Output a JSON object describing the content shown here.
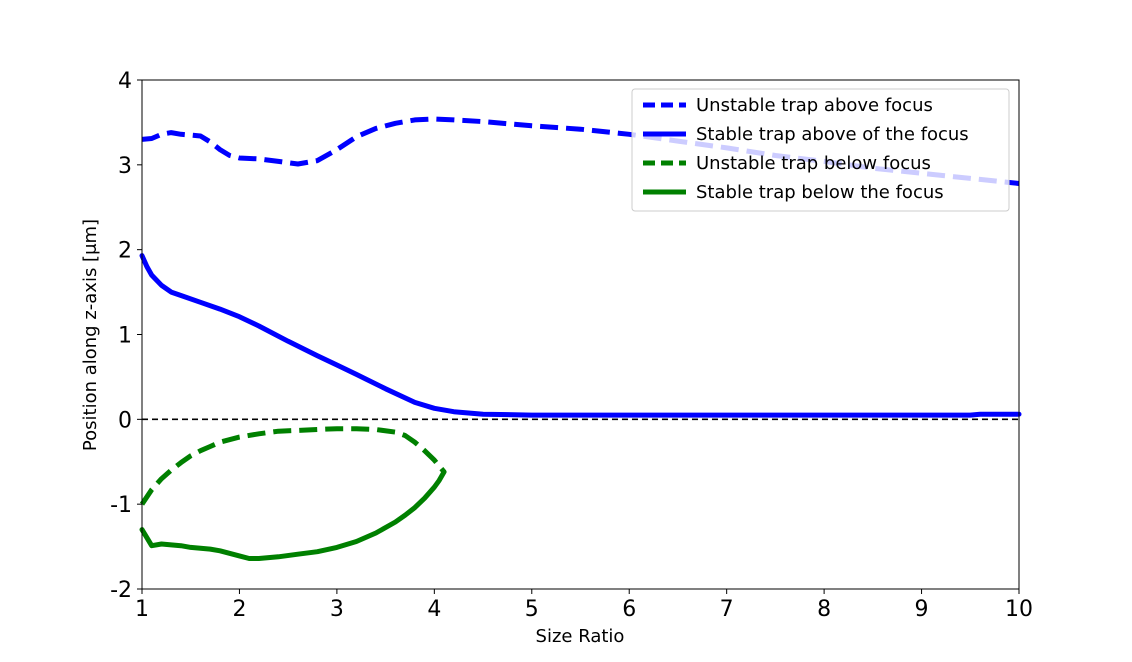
{
  "chart_data": {
    "type": "line",
    "xlabel": "Size Ratio",
    "ylabel": "Position along z-axis [μm]",
    "xlim": [
      1,
      10
    ],
    "ylim": [
      -2,
      4
    ],
    "xticks": [
      1,
      2,
      3,
      4,
      5,
      6,
      7,
      8,
      9,
      10
    ],
    "yticks": [
      -2,
      -1,
      0,
      1,
      2,
      3,
      4
    ],
    "xtick_labels": [
      "1",
      "2",
      "3",
      "4",
      "5",
      "6",
      "7",
      "8",
      "9",
      "10"
    ],
    "ytick_labels": [
      "-2",
      "-1",
      "0",
      "1",
      "2",
      "3",
      "4"
    ],
    "grid": false,
    "legend_position": "top-right",
    "reference_line": {
      "y": 0,
      "style": "dashed",
      "color": "#000000"
    },
    "series": [
      {
        "name": "Unstable trap above focus",
        "color": "#0000ff",
        "style": "dashed",
        "x": [
          1.0,
          1.1,
          1.2,
          1.3,
          1.4,
          1.5,
          1.6,
          1.7,
          1.8,
          1.9,
          2.0,
          2.2,
          2.4,
          2.6,
          2.8,
          3.0,
          3.2,
          3.4,
          3.6,
          3.8,
          4.0,
          4.2,
          4.5,
          5.0,
          5.5,
          6.0,
          6.5,
          7.0,
          7.5,
          8.0,
          8.5,
          9.0,
          9.5,
          10.0
        ],
        "y": [
          3.3,
          3.31,
          3.36,
          3.38,
          3.36,
          3.35,
          3.34,
          3.27,
          3.18,
          3.11,
          3.08,
          3.07,
          3.04,
          3.01,
          3.05,
          3.18,
          3.33,
          3.43,
          3.49,
          3.53,
          3.54,
          3.53,
          3.51,
          3.46,
          3.42,
          3.36,
          3.28,
          3.2,
          3.11,
          3.04,
          2.96,
          2.9,
          2.84,
          2.78
        ]
      },
      {
        "name": "Stable trap above of the focus",
        "color": "#0000ff",
        "style": "solid",
        "x": [
          1.0,
          1.05,
          1.1,
          1.2,
          1.3,
          1.4,
          1.6,
          1.8,
          2.0,
          2.2,
          2.5,
          2.8,
          3.0,
          3.2,
          3.5,
          3.8,
          4.0,
          4.2,
          4.5,
          5.0,
          6.0,
          7.0,
          8.0,
          9.0,
          9.5,
          9.6,
          10.0
        ],
        "y": [
          1.93,
          1.8,
          1.7,
          1.58,
          1.5,
          1.46,
          1.38,
          1.3,
          1.21,
          1.1,
          0.92,
          0.75,
          0.64,
          0.53,
          0.36,
          0.2,
          0.13,
          0.09,
          0.06,
          0.05,
          0.05,
          0.05,
          0.05,
          0.05,
          0.05,
          0.06,
          0.06
        ]
      },
      {
        "name": "Unstable trap below focus",
        "color": "#008000",
        "style": "dashed",
        "x": [
          1.0,
          1.1,
          1.2,
          1.3,
          1.4,
          1.5,
          1.6,
          1.7,
          1.8,
          2.0,
          2.2,
          2.4,
          2.6,
          2.8,
          3.0,
          3.2,
          3.4,
          3.6,
          3.7,
          3.8,
          3.9,
          4.0,
          4.1
        ],
        "y": [
          -1.0,
          -0.83,
          -0.7,
          -0.6,
          -0.51,
          -0.43,
          -0.37,
          -0.32,
          -0.27,
          -0.21,
          -0.17,
          -0.14,
          -0.13,
          -0.12,
          -0.11,
          -0.11,
          -0.12,
          -0.15,
          -0.19,
          -0.27,
          -0.37,
          -0.48,
          -0.62
        ]
      },
      {
        "name": "Stable trap below the focus",
        "color": "#008000",
        "style": "solid",
        "x": [
          1.0,
          1.1,
          1.2,
          1.3,
          1.4,
          1.5,
          1.6,
          1.7,
          1.8,
          2.0,
          2.1,
          2.2,
          2.4,
          2.6,
          2.8,
          3.0,
          3.2,
          3.4,
          3.6,
          3.7,
          3.8,
          3.9,
          4.0,
          4.05,
          4.1
        ],
        "y": [
          -1.3,
          -1.49,
          -1.47,
          -1.48,
          -1.49,
          -1.51,
          -1.52,
          -1.53,
          -1.55,
          -1.61,
          -1.64,
          -1.64,
          -1.62,
          -1.59,
          -1.56,
          -1.51,
          -1.44,
          -1.34,
          -1.21,
          -1.13,
          -1.04,
          -0.93,
          -0.8,
          -0.72,
          -0.62
        ]
      }
    ]
  }
}
